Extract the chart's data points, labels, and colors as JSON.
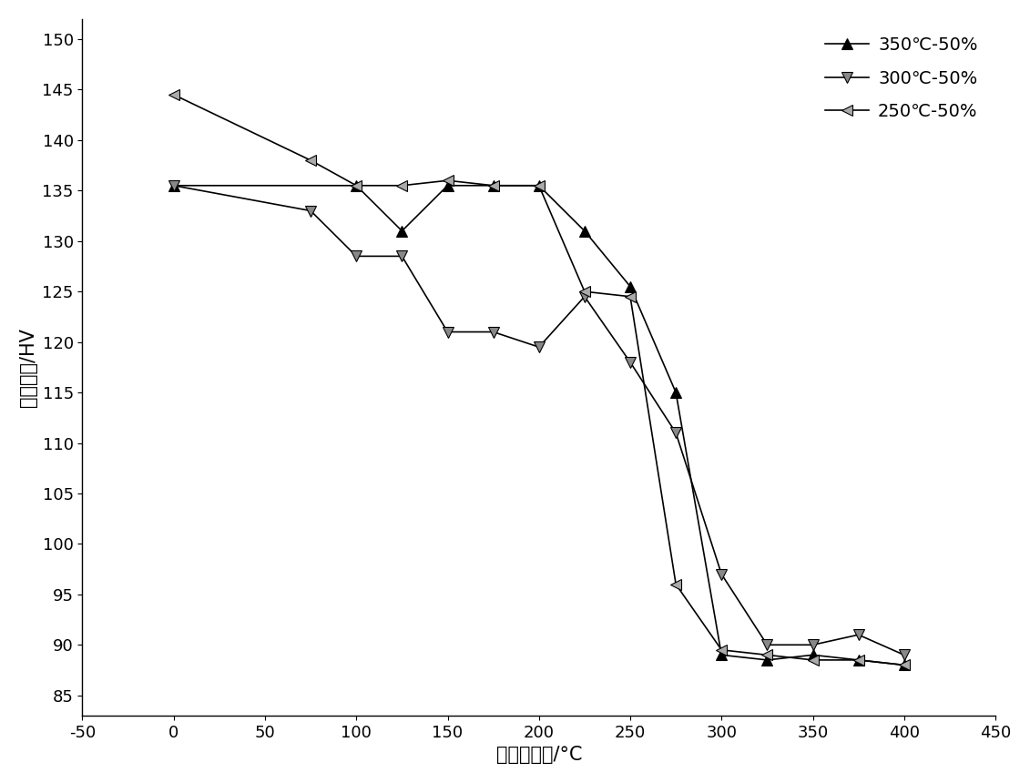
{
  "series": [
    {
      "label": "350℃-50%",
      "marker": "^",
      "color": "#000000",
      "x": [
        0,
        100,
        125,
        150,
        175,
        200,
        225,
        250,
        275,
        300,
        325,
        350,
        375,
        400
      ],
      "y": [
        135.5,
        135.5,
        131,
        135.5,
        135.5,
        135.5,
        131,
        125.5,
        115,
        89,
        88.5,
        89,
        88.5,
        88
      ]
    },
    {
      "label": "300℃-50%",
      "marker": "v",
      "color": "#000000",
      "x": [
        0,
        75,
        100,
        125,
        150,
        175,
        200,
        225,
        250,
        275,
        300,
        325,
        350,
        375,
        400
      ],
      "y": [
        135.5,
        133,
        128.5,
        128.5,
        121,
        121,
        119.5,
        124.5,
        118,
        111,
        97,
        90,
        90,
        91,
        89
      ]
    },
    {
      "label": "250℃-50%",
      "marker": "<",
      "color": "#000000",
      "x": [
        0,
        75,
        100,
        125,
        150,
        175,
        200,
        225,
        250,
        275,
        300,
        325,
        350,
        375,
        400
      ],
      "y": [
        144.5,
        138,
        135.5,
        135.5,
        136,
        135.5,
        135.5,
        125,
        124.5,
        96,
        89.5,
        89,
        88.5,
        88.5,
        88
      ]
    }
  ],
  "xlabel": "热处理温度/°C",
  "ylabel": "最微硬度/HV",
  "xlim": [
    -50,
    450
  ],
  "ylim": [
    83,
    152
  ],
  "xticks": [
    -50,
    0,
    50,
    100,
    150,
    200,
    250,
    300,
    350,
    400,
    450
  ],
  "yticks": [
    85,
    90,
    95,
    100,
    105,
    110,
    115,
    120,
    125,
    130,
    135,
    140,
    145,
    150
  ],
  "linewidth": 1.2,
  "markersize": 9,
  "background_color": "#ffffff",
  "legend_fontsize": 14,
  "axis_fontsize": 15,
  "tick_fontsize": 13
}
